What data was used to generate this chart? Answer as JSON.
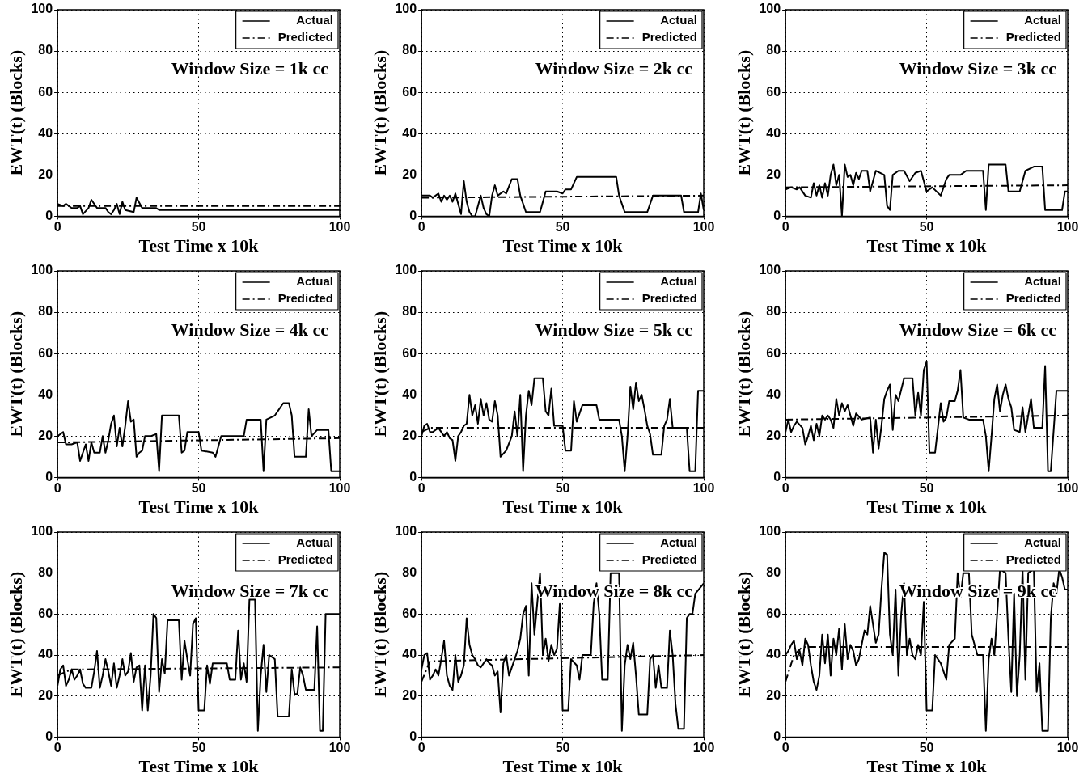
{
  "chart_data": [
    {
      "type": "line",
      "xlabel": "Test Time x 10k",
      "ylabel": "EWT(t) (Blocks)",
      "annotations": [
        "Window Size = 1k cc"
      ],
      "xlim": [
        0,
        100
      ],
      "xticks": [
        0,
        50,
        100
      ],
      "ylim": [
        0,
        100
      ],
      "yticks": [
        0,
        20,
        40,
        60,
        80,
        100
      ],
      "grid": true,
      "legend": "top right",
      "series": [
        {
          "name": "Actual",
          "color": "#000000",
          "line_style": "solid",
          "x": [
            0,
            2,
            3,
            5,
            7,
            8,
            9,
            11,
            12,
            14,
            17,
            18,
            19,
            20,
            21,
            22,
            23,
            24,
            27,
            28,
            30,
            32,
            35,
            36,
            100
          ],
          "values": [
            6,
            5,
            6,
            4,
            4,
            5,
            1,
            4,
            8,
            4,
            4,
            2,
            1,
            3,
            6,
            1,
            7,
            3,
            2,
            9,
            4,
            4,
            4,
            3,
            3
          ]
        },
        {
          "name": "Predicted",
          "color": "#000000",
          "line_style": "dashed",
          "x": [
            0,
            100
          ],
          "values": [
            5,
            5
          ]
        }
      ]
    },
    {
      "type": "line",
      "xlabel": "Test Time x 10k",
      "ylabel": "EWT(t) (Blocks)",
      "annotations": [
        "Window Size = 2k cc"
      ],
      "xlim": [
        0,
        100
      ],
      "xticks": [
        0,
        50,
        100
      ],
      "ylim": [
        0,
        100
      ],
      "yticks": [
        0,
        20,
        40,
        60,
        80,
        100
      ],
      "grid": true,
      "legend": "top right",
      "series": [
        {
          "name": "Actual",
          "color": "#000000",
          "line_style": "solid",
          "x": [
            0,
            3,
            4,
            6,
            7,
            8,
            9,
            10,
            11,
            12,
            14,
            15,
            16,
            17,
            18,
            19,
            21,
            22,
            23,
            24,
            25,
            26,
            27,
            29,
            30,
            32,
            34,
            35,
            37,
            42,
            44,
            48,
            50,
            51,
            53,
            55,
            69,
            70,
            72,
            80,
            82,
            85,
            92,
            93,
            98,
            99,
            100
          ],
          "values": [
            10,
            10,
            9,
            11,
            7,
            10,
            8,
            10,
            7,
            11,
            1,
            17,
            7,
            2,
            0,
            0,
            10,
            4,
            1,
            0,
            10,
            15,
            10,
            12,
            11,
            18,
            18,
            10,
            2,
            2,
            12,
            12,
            11,
            13,
            13,
            19,
            19,
            10,
            2,
            2,
            10,
            10,
            10,
            2,
            2,
            11,
            3
          ]
        },
        {
          "name": "Predicted",
          "color": "#000000",
          "line_style": "dashed",
          "x": [
            0,
            3,
            100
          ],
          "values": [
            9,
            9,
            10
          ]
        }
      ]
    },
    {
      "type": "line",
      "xlabel": "Test Time x 10k",
      "ylabel": "EWT(t) (Blocks)",
      "annotations": [
        "Window Size = 3k cc"
      ],
      "xlim": [
        0,
        100
      ],
      "xticks": [
        0,
        50,
        100
      ],
      "ylim": [
        0,
        100
      ],
      "yticks": [
        0,
        20,
        40,
        60,
        80,
        100
      ],
      "grid": true,
      "legend": "top right",
      "series": [
        {
          "name": "Actual",
          "color": "#000000",
          "line_style": "solid",
          "x": [
            0,
            2,
            4,
            5,
            7,
            9,
            10,
            11,
            12,
            13,
            14,
            15,
            16,
            17,
            18,
            19,
            20,
            21,
            22,
            23,
            24,
            25,
            26,
            27,
            29,
            30,
            31,
            32,
            35,
            36,
            37,
            38,
            40,
            42,
            44,
            46,
            48,
            50,
            52,
            55,
            57,
            58,
            62,
            64,
            70,
            71,
            72,
            78,
            79,
            83,
            85,
            88,
            91,
            92,
            98,
            99,
            100
          ],
          "values": [
            13,
            14,
            13,
            14,
            10,
            9,
            16,
            10,
            15,
            9,
            16,
            10,
            20,
            25,
            15,
            20,
            0,
            25,
            19,
            20,
            15,
            21,
            18,
            22,
            22,
            12,
            17,
            22,
            20,
            5,
            3,
            20,
            22,
            22,
            17,
            21,
            22,
            12,
            14,
            10,
            18,
            20,
            20,
            22,
            22,
            3,
            25,
            25,
            12,
            12,
            22,
            24,
            24,
            3,
            3,
            12,
            12
          ]
        },
        {
          "name": "Predicted",
          "color": "#000000",
          "line_style": "dashed",
          "x": [
            0,
            100
          ],
          "values": [
            14,
            15
          ]
        }
      ]
    },
    {
      "type": "line",
      "xlabel": "Test Time x 10k",
      "ylabel": "EWT(t) (Blocks)",
      "annotations": [
        "Window Size = 4k cc"
      ],
      "xlim": [
        0,
        100
      ],
      "xticks": [
        0,
        50,
        100
      ],
      "ylim": [
        0,
        100
      ],
      "yticks": [
        0,
        20,
        40,
        60,
        80,
        100
      ],
      "grid": true,
      "legend": "top right",
      "series": [
        {
          "name": "Actual",
          "color": "#000000",
          "line_style": "solid",
          "x": [
            0,
            2,
            3,
            5,
            7,
            8,
            9,
            10,
            11,
            12,
            13,
            15,
            16,
            17,
            18,
            19,
            20,
            21,
            22,
            23,
            24,
            25,
            26,
            27,
            28,
            29,
            30,
            31,
            33,
            35,
            36,
            37,
            43,
            44,
            45,
            46,
            50,
            51,
            55,
            56,
            58,
            66,
            67,
            72,
            73,
            74,
            77,
            80,
            82,
            83,
            84,
            88,
            89,
            90,
            92,
            96,
            97,
            100
          ],
          "values": [
            20,
            22,
            16,
            16,
            17,
            8,
            12,
            16,
            8,
            17,
            12,
            12,
            20,
            12,
            18,
            26,
            30,
            15,
            24,
            15,
            25,
            37,
            27,
            28,
            10,
            12,
            13,
            20,
            20,
            21,
            3,
            30,
            30,
            12,
            13,
            22,
            22,
            13,
            12,
            10,
            20,
            20,
            28,
            28,
            3,
            28,
            30,
            36,
            36,
            30,
            10,
            10,
            33,
            20,
            23,
            23,
            3,
            3
          ]
        },
        {
          "name": "Predicted",
          "color": "#000000",
          "line_style": "dashed",
          "x": [
            0,
            3,
            100
          ],
          "values": [
            17,
            17,
            19
          ]
        }
      ]
    },
    {
      "type": "line",
      "xlabel": "Test Time x 10k",
      "ylabel": "EWT(t) (Blocks)",
      "annotations": [
        "Window Size = 5k cc"
      ],
      "xlim": [
        0,
        100
      ],
      "xticks": [
        0,
        50,
        100
      ],
      "ylim": [
        0,
        100
      ],
      "yticks": [
        0,
        20,
        40,
        60,
        80,
        100
      ],
      "grid": true,
      "legend": "top right",
      "series": [
        {
          "name": "Actual",
          "color": "#000000",
          "line_style": "solid",
          "x": [
            0,
            1,
            2,
            3,
            4,
            6,
            8,
            9,
            10,
            11,
            12,
            13,
            14,
            15,
            16,
            17,
            18,
            19,
            20,
            21,
            22,
            23,
            24,
            25,
            26,
            27,
            28,
            30,
            32,
            33,
            34,
            35,
            36,
            37,
            38,
            39,
            40,
            43,
            44,
            45,
            46,
            47,
            50,
            51,
            53,
            54,
            55,
            57,
            62,
            63,
            70,
            71,
            72,
            73,
            74,
            75,
            76,
            77,
            78,
            79,
            80,
            81,
            82,
            85,
            86,
            87,
            88,
            89,
            94,
            95,
            97,
            98,
            100
          ],
          "values": [
            20,
            25,
            26,
            22,
            22,
            24,
            20,
            22,
            19,
            18,
            8,
            20,
            22,
            25,
            26,
            40,
            30,
            35,
            26,
            38,
            30,
            36,
            28,
            27,
            37,
            30,
            10,
            13,
            20,
            32,
            20,
            40,
            3,
            30,
            42,
            35,
            48,
            48,
            32,
            30,
            43,
            25,
            25,
            13,
            13,
            37,
            27,
            35,
            35,
            28,
            28,
            20,
            3,
            20,
            44,
            33,
            46,
            37,
            40,
            33,
            25,
            21,
            11,
            11,
            25,
            28,
            38,
            24,
            24,
            3,
            3,
            42,
            42
          ]
        },
        {
          "name": "Predicted",
          "color": "#000000",
          "line_style": "dashed",
          "x": [
            0,
            3,
            100
          ],
          "values": [
            22,
            24,
            24
          ]
        }
      ]
    },
    {
      "type": "line",
      "xlabel": "Test Time x 10k",
      "ylabel": "EWT(t) (Blocks)",
      "annotations": [
        "Window Size = 6k cc"
      ],
      "xlim": [
        0,
        100
      ],
      "xticks": [
        0,
        50,
        100
      ],
      "ylim": [
        0,
        100
      ],
      "yticks": [
        0,
        20,
        40,
        60,
        80,
        100
      ],
      "grid": true,
      "legend": "top right",
      "series": [
        {
          "name": "Actual",
          "color": "#000000",
          "line_style": "solid",
          "x": [
            0,
            1,
            2,
            3,
            4,
            6,
            7,
            8,
            9,
            10,
            11,
            12,
            13,
            14,
            15,
            16,
            17,
            18,
            19,
            20,
            21,
            22,
            23,
            24,
            25,
            27,
            30,
            31,
            32,
            33,
            34,
            35,
            36,
            37,
            38,
            39,
            40,
            42,
            45,
            46,
            47,
            48,
            49,
            50,
            51,
            53,
            55,
            56,
            57,
            58,
            60,
            61,
            62,
            63,
            65,
            70,
            71,
            72,
            73,
            74,
            75,
            76,
            77,
            78,
            79,
            80,
            81,
            83,
            84,
            85,
            87,
            88,
            91,
            92,
            93,
            94,
            96,
            100
          ],
          "values": [
            22,
            28,
            22,
            25,
            27,
            24,
            16,
            20,
            25,
            18,
            26,
            20,
            30,
            28,
            30,
            28,
            24,
            38,
            30,
            36,
            32,
            35,
            30,
            25,
            31,
            28,
            29,
            12,
            28,
            14,
            25,
            38,
            42,
            45,
            23,
            40,
            37,
            48,
            48,
            30,
            41,
            30,
            52,
            56,
            12,
            12,
            36,
            27,
            29,
            37,
            37,
            42,
            52,
            29,
            28,
            28,
            20,
            3,
            20,
            38,
            45,
            32,
            40,
            45,
            38,
            34,
            23,
            22,
            34,
            22,
            38,
            24,
            24,
            54,
            3,
            3,
            42,
            42
          ]
        },
        {
          "name": "Predicted",
          "color": "#000000",
          "line_style": "dashed",
          "x": [
            0,
            100
          ],
          "values": [
            28,
            30
          ]
        }
      ]
    },
    {
      "type": "line",
      "xlabel": "Test Time x 10k",
      "ylabel": "EWT(t) (Blocks)",
      "annotations": [
        "Window Size = 7k cc"
      ],
      "xlim": [
        0,
        100
      ],
      "xticks": [
        0,
        50,
        100
      ],
      "ylim": [
        0,
        100
      ],
      "yticks": [
        0,
        20,
        40,
        60,
        80,
        100
      ],
      "grid": true,
      "legend": "top right",
      "series": [
        {
          "name": "Actual",
          "color": "#000000",
          "line_style": "solid",
          "x": [
            0,
            1,
            2,
            3,
            4,
            5,
            6,
            7,
            8,
            9,
            10,
            12,
            13,
            14,
            15,
            16,
            17,
            18,
            19,
            20,
            21,
            22,
            23,
            24,
            25,
            26,
            27,
            28,
            29,
            30,
            31,
            32,
            33,
            34,
            35,
            36,
            37,
            38,
            39,
            43,
            44,
            45,
            46,
            47,
            48,
            49,
            50,
            52,
            53,
            54,
            55,
            60,
            61,
            63,
            64,
            65,
            66,
            67,
            68,
            70,
            71,
            72,
            73,
            74,
            75,
            77,
            78,
            82,
            83,
            84,
            85,
            86,
            87,
            88,
            91,
            92,
            93,
            94,
            95,
            100
          ],
          "values": [
            25,
            33,
            35,
            25,
            28,
            33,
            28,
            30,
            33,
            26,
            24,
            24,
            32,
            42,
            24,
            30,
            38,
            32,
            25,
            36,
            24,
            30,
            38,
            30,
            32,
            41,
            27,
            34,
            35,
            13,
            35,
            13,
            30,
            60,
            58,
            22,
            38,
            31,
            57,
            57,
            28,
            47,
            38,
            30,
            55,
            58,
            13,
            13,
            35,
            26,
            36,
            36,
            28,
            28,
            52,
            28,
            36,
            27,
            67,
            67,
            3,
            30,
            45,
            22,
            40,
            38,
            10,
            10,
            33,
            21,
            21,
            34,
            30,
            23,
            23,
            54,
            3,
            3,
            60,
            60
          ]
        },
        {
          "name": "Predicted",
          "color": "#000000",
          "line_style": "dashed",
          "x": [
            0,
            5,
            100
          ],
          "values": [
            30,
            33,
            34
          ]
        }
      ]
    },
    {
      "type": "line",
      "xlabel": "Test Time x 10k",
      "ylabel": "EWT(t) (Blocks)",
      "annotations": [
        "Window Size = 8k cc"
      ],
      "xlim": [
        0,
        100
      ],
      "xticks": [
        0,
        50,
        100
      ],
      "ylim": [
        0,
        100
      ],
      "yticks": [
        0,
        20,
        40,
        60,
        80,
        100
      ],
      "grid": true,
      "legend": "top right",
      "series": [
        {
          "name": "Actual",
          "color": "#000000",
          "line_style": "solid",
          "x": [
            0,
            1,
            2,
            3,
            4,
            5,
            6,
            7,
            8,
            9,
            10,
            11,
            12,
            13,
            14,
            15,
            16,
            17,
            18,
            19,
            20,
            21,
            23,
            24,
            25,
            26,
            27,
            28,
            29,
            30,
            31,
            33,
            34,
            35,
            36,
            37,
            38,
            39,
            40,
            42,
            43,
            44,
            45,
            46,
            47,
            48,
            49,
            50,
            52,
            53,
            55,
            56,
            57,
            60,
            61,
            62,
            63,
            64,
            66,
            67,
            70,
            71,
            72,
            73,
            74,
            75,
            76,
            77,
            80,
            81,
            82,
            83,
            84,
            85,
            87,
            88,
            89,
            90,
            91,
            93,
            94,
            95,
            96,
            97,
            100
          ],
          "values": [
            33,
            40,
            41,
            28,
            30,
            33,
            30,
            38,
            47,
            30,
            25,
            23,
            40,
            27,
            30,
            35,
            58,
            45,
            40,
            38,
            35,
            34,
            38,
            36,
            35,
            30,
            32,
            12,
            36,
            40,
            30,
            38,
            42,
            48,
            60,
            64,
            30,
            75,
            50,
            80,
            40,
            48,
            37,
            45,
            40,
            43,
            65,
            13,
            13,
            38,
            35,
            28,
            40,
            40,
            65,
            75,
            60,
            28,
            28,
            80,
            80,
            3,
            35,
            45,
            38,
            46,
            30,
            11,
            11,
            38,
            40,
            24,
            35,
            24,
            24,
            52,
            40,
            16,
            4,
            4,
            58,
            60,
            60,
            70,
            75
          ]
        },
        {
          "name": "Predicted",
          "color": "#000000",
          "line_style": "dashed",
          "x": [
            0,
            3,
            100
          ],
          "values": [
            27,
            37,
            40
          ]
        }
      ]
    },
    {
      "type": "line",
      "xlabel": "Test Time x 10k",
      "ylabel": "EWT(t) (Blocks)",
      "annotations": [
        "Window Size = 9k cc"
      ],
      "xlim": [
        0,
        100
      ],
      "xticks": [
        0,
        50,
        100
      ],
      "ylim": [
        0,
        100
      ],
      "yticks": [
        0,
        20,
        40,
        60,
        80,
        100
      ],
      "grid": true,
      "legend": "top right",
      "series": [
        {
          "name": "Actual",
          "color": "#000000",
          "line_style": "solid",
          "x": [
            0,
            1,
            2,
            3,
            4,
            5,
            6,
            7,
            8,
            9,
            10,
            11,
            12,
            13,
            14,
            15,
            16,
            17,
            18,
            19,
            20,
            21,
            22,
            23,
            24,
            25,
            26,
            27,
            28,
            29,
            30,
            31,
            32,
            33,
            34,
            35,
            36,
            37,
            38,
            39,
            40,
            41,
            42,
            43,
            44,
            45,
            46,
            47,
            48,
            49,
            50,
            52,
            53,
            55,
            57,
            58,
            60,
            61,
            62,
            63,
            65,
            66,
            68,
            70,
            71,
            72,
            73,
            74,
            75,
            76,
            78,
            79,
            80,
            81,
            82,
            83,
            84,
            85,
            86,
            88,
            89,
            90,
            91,
            93,
            94,
            95,
            96,
            97,
            98,
            99,
            100
          ],
          "values": [
            40,
            42,
            45,
            47,
            38,
            42,
            35,
            48,
            45,
            35,
            27,
            23,
            30,
            50,
            36,
            50,
            30,
            48,
            40,
            53,
            33,
            55,
            38,
            45,
            42,
            35,
            38,
            45,
            52,
            50,
            64,
            55,
            46,
            50,
            72,
            90,
            89,
            50,
            40,
            72,
            30,
            60,
            75,
            40,
            48,
            40,
            38,
            45,
            40,
            66,
            13,
            13,
            40,
            36,
            28,
            45,
            48,
            80,
            68,
            80,
            80,
            50,
            40,
            40,
            3,
            38,
            48,
            40,
            60,
            82,
            80,
            48,
            22,
            70,
            20,
            40,
            82,
            28,
            80,
            82,
            22,
            36,
            3,
            3,
            58,
            75,
            70,
            82,
            78,
            72,
            72
          ]
        },
        {
          "name": "Predicted",
          "color": "#000000",
          "line_style": "dashed",
          "x": [
            0,
            3,
            6,
            100
          ],
          "values": [
            27,
            40,
            44,
            44
          ]
        }
      ]
    }
  ]
}
